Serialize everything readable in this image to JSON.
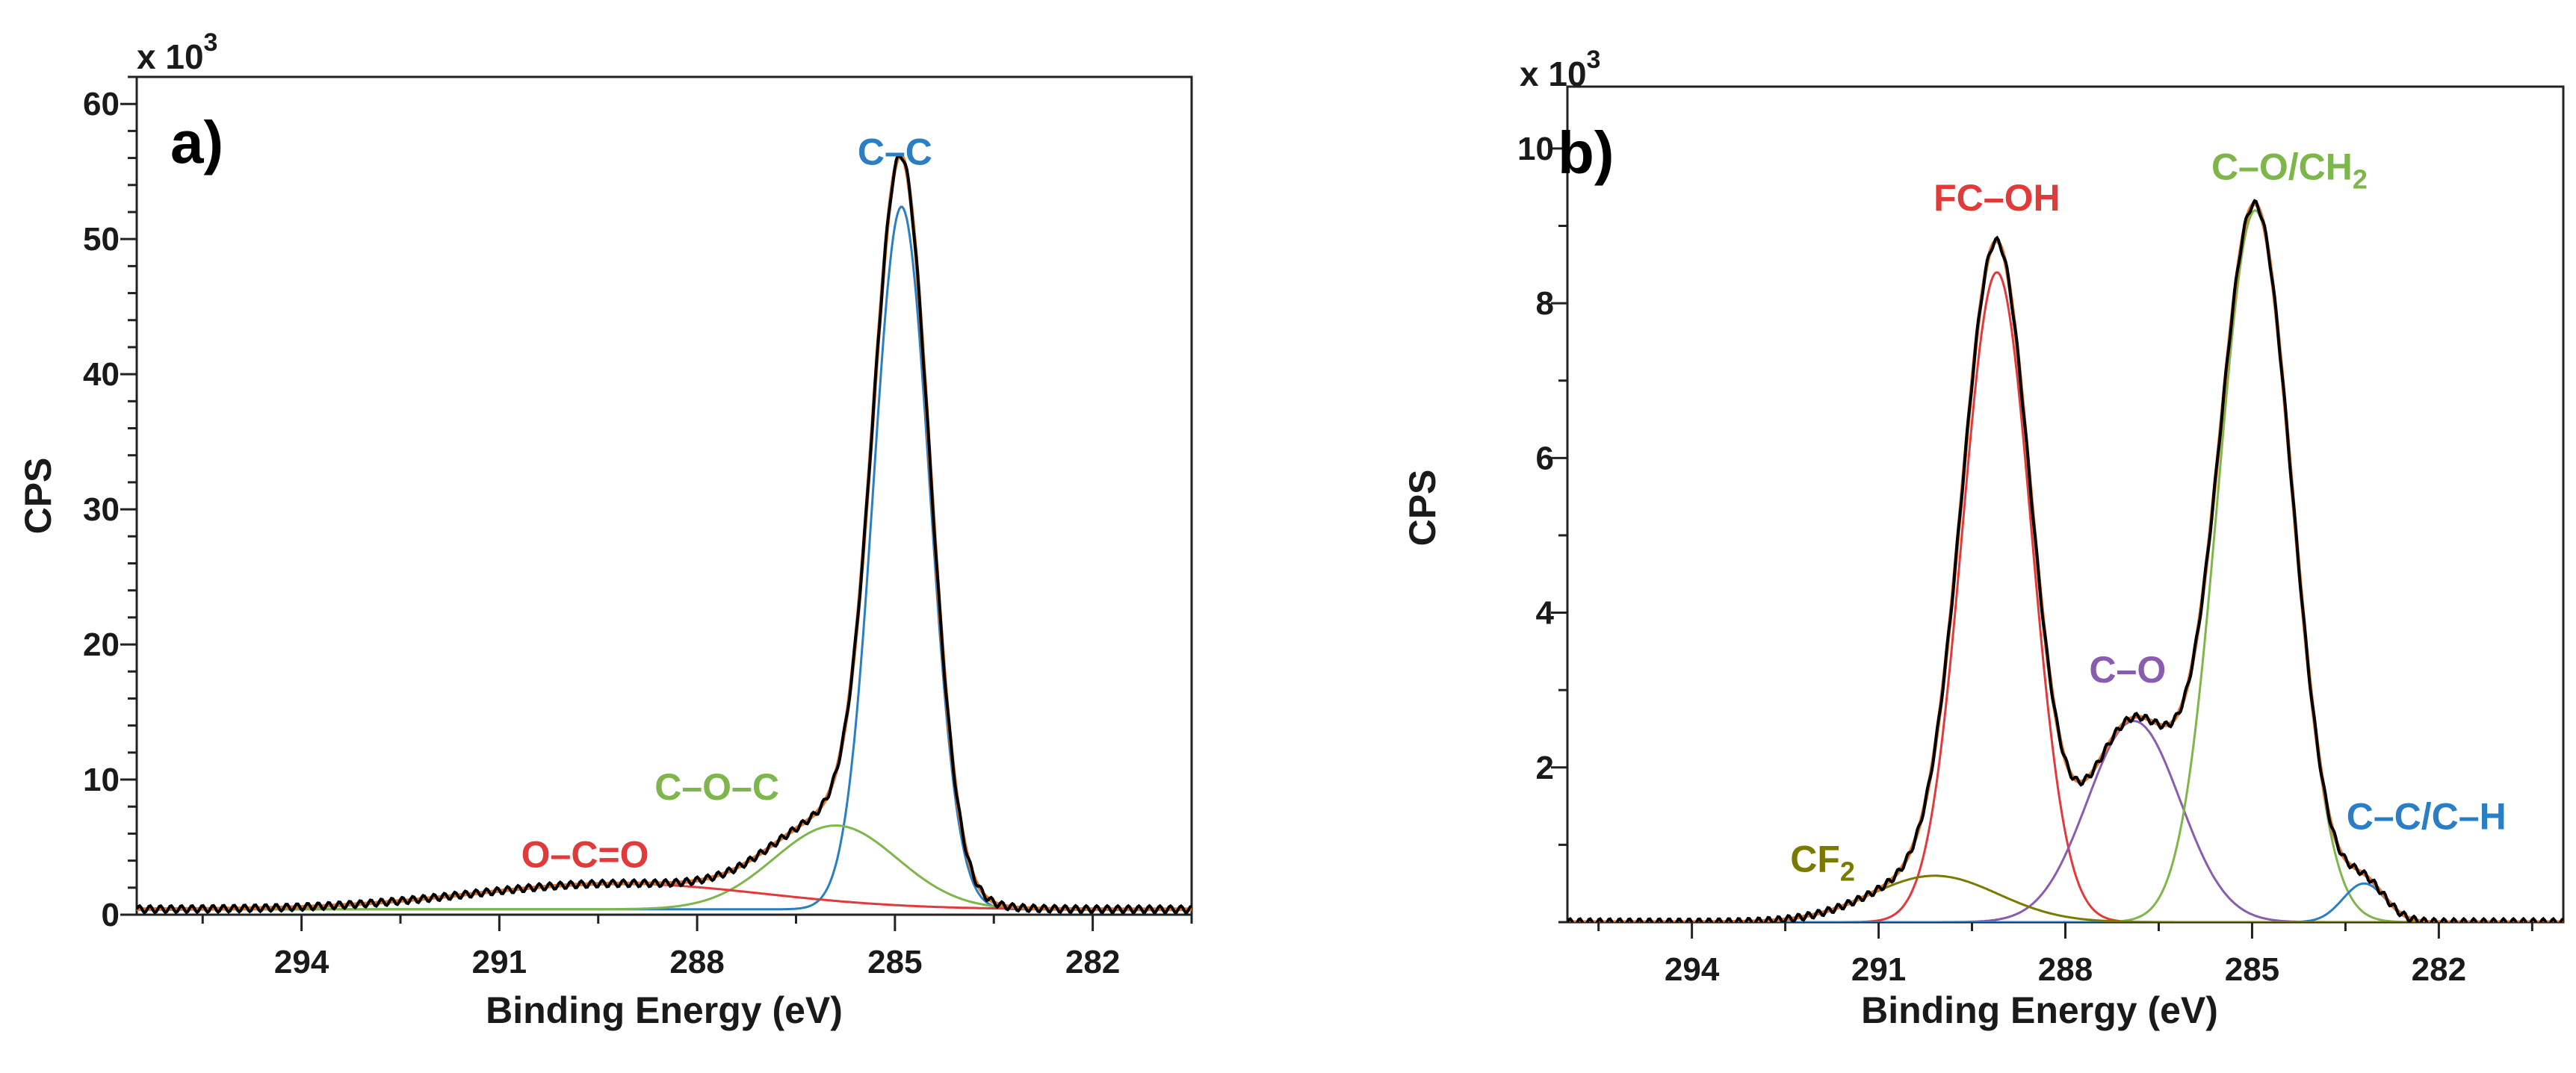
{
  "chart_data": [
    {
      "type": "line",
      "panel_label": "a)",
      "xlabel": "Binding Energy (eV)",
      "ylabel": "CPS",
      "y_multiplier": "x 10",
      "y_multiplier_exp": "3",
      "xlim": [
        296.5,
        280.5
      ],
      "ylim": [
        0,
        62
      ],
      "xticks": [
        294,
        291,
        288,
        285,
        282
      ],
      "xtick_labels": [
        "294",
        "291",
        "288",
        "285",
        "282"
      ],
      "yticks": [
        0,
        10,
        20,
        30,
        40,
        50,
        60
      ],
      "ytick_labels": [
        "0",
        "10",
        "20",
        "30",
        "40",
        "50",
        "60"
      ],
      "background": 0.4,
      "components": [
        {
          "name": "C–C",
          "label": "C–C",
          "color": "#2a7fc4",
          "center": 284.9,
          "height": 52.0,
          "fwhm": 1.0,
          "label_x": 285.0,
          "label_y": 55.5
        },
        {
          "name": "C–O–C",
          "label": "C–O–C",
          "color": "#7db64a",
          "center": 285.9,
          "height": 6.2,
          "fwhm": 2.2,
          "label_x": 287.7,
          "label_y": 8.5
        },
        {
          "name": "O–C=O",
          "label": "O–C=O",
          "color": "#e03a3a",
          "center": 289.2,
          "height": 1.9,
          "fwhm": 5.2,
          "label_x": 289.7,
          "label_y": 3.5
        }
      ],
      "envelope_colors": [
        "#e8772e",
        "#000000"
      ]
    },
    {
      "type": "line",
      "panel_label": "b)",
      "xlabel": "Binding Energy (eV)",
      "ylabel": "CPS",
      "y_multiplier": "x 10",
      "y_multiplier_exp": "3",
      "xlim": [
        296,
        280
      ],
      "ylim": [
        0,
        10.8
      ],
      "xticks": [
        294,
        291,
        288,
        285,
        282
      ],
      "xtick_labels": [
        "294",
        "291",
        "288",
        "285",
        "282"
      ],
      "yticks": [
        2,
        4,
        6,
        8,
        10
      ],
      "ytick_labels": [
        "2",
        "4",
        "6",
        "8",
        "10"
      ],
      "background": 0,
      "components": [
        {
          "name": "FC–OH",
          "label": "FC–OH",
          "color": "#e03a3a",
          "center": 289.1,
          "height": 8.4,
          "fwhm": 1.3,
          "label_x": 289.1,
          "label_y": 9.2
        },
        {
          "name": "C–O",
          "label": "C–O",
          "color": "#8a5cb0",
          "center": 286.9,
          "height": 2.6,
          "fwhm": 1.75,
          "label_x": 287.0,
          "label_y": 3.1
        },
        {
          "name": "C–O/CH2",
          "label": "C–O/CH",
          "label_sub": "2",
          "color": "#7db64a",
          "center": 284.95,
          "height": 9.2,
          "fwhm": 1.4,
          "label_x": 284.4,
          "label_y": 9.6
        },
        {
          "name": "C–C/C–H",
          "label": "C–C/C–H",
          "color": "#2a7fc4",
          "center": 283.2,
          "height": 0.5,
          "fwhm": 0.8,
          "label_x": 282.2,
          "label_y": 1.2
        },
        {
          "name": "CF2",
          "label": "CF",
          "label_sub": "2",
          "color": "#7a7a00",
          "center": 290.1,
          "height": 0.6,
          "fwhm": 2.4,
          "label_x": 291.9,
          "label_y": 0.65
        }
      ],
      "envelope_colors": [
        "#e8772e",
        "#000000"
      ]
    }
  ]
}
